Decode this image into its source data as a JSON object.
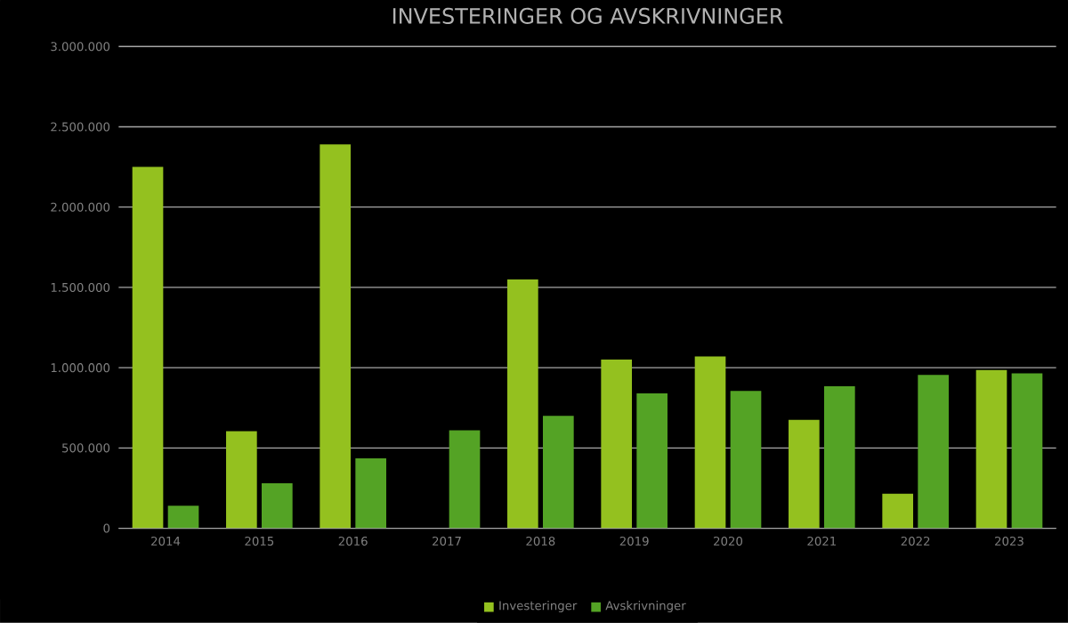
{
  "chart_data": {
    "type": "bar",
    "title": "INVESTERINGER OG AVSKRIVNINGER",
    "categories": [
      "2014",
      "2015",
      "2016",
      "2017",
      "2018",
      "2019",
      "2020",
      "2021",
      "2022",
      "2023"
    ],
    "series": [
      {
        "name": "Investeringer",
        "color": "#94c11f",
        "values": [
          2250000,
          605000,
          2390000,
          0,
          1550000,
          1050000,
          1070000,
          675000,
          215000,
          985000
        ]
      },
      {
        "name": "Avskrivninger",
        "color": "#54a325",
        "values": [
          140000,
          280000,
          435000,
          610000,
          700000,
          840000,
          855000,
          885000,
          955000,
          965000
        ]
      }
    ],
    "ylim": [
      0,
      3000000
    ],
    "yticks": [
      {
        "value": 0,
        "label": "0"
      },
      {
        "value": 500000,
        "label": "500.000"
      },
      {
        "value": 1000000,
        "label": "1.000.000"
      },
      {
        "value": 1500000,
        "label": "1.500.000"
      },
      {
        "value": 2000000,
        "label": "2.000.000"
      },
      {
        "value": 2500000,
        "label": "2.500.000"
      },
      {
        "value": 3000000,
        "label": "3.000.000"
      }
    ],
    "grid": "y",
    "legend": "bottom"
  }
}
